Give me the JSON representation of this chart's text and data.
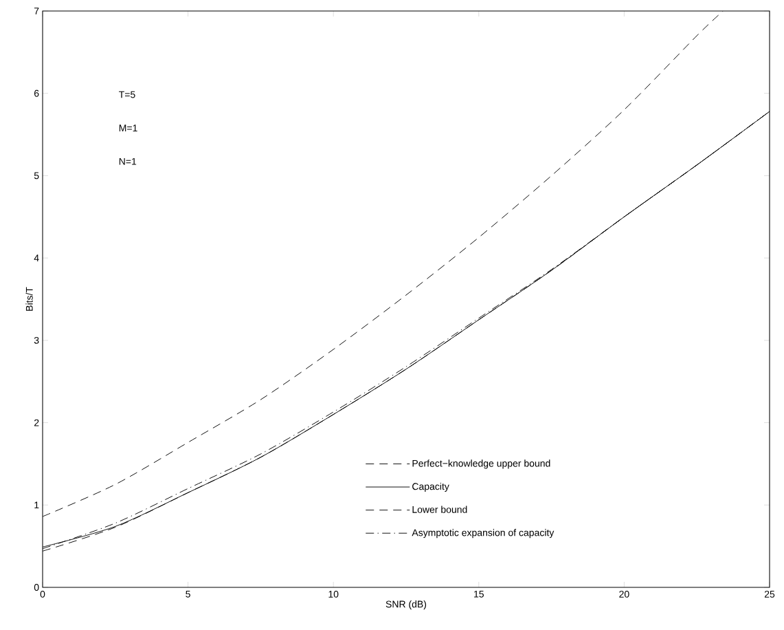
{
  "chart_data": {
    "type": "line",
    "xlabel": "SNR (dB)",
    "ylabel": "Bits/T",
    "x": [
      0,
      2.5,
      5,
      7.5,
      10,
      12.5,
      15,
      17.5,
      20,
      22.5,
      25
    ],
    "series": [
      {
        "name": "Perfect−knowledge upper bound",
        "color": "#000000",
        "line_style": "dashed",
        "x": [
          0,
          2.5,
          5,
          7.5,
          10,
          12.5,
          15,
          17.5,
          20,
          22.5,
          23.4
        ],
        "values": [
          0.86,
          1.25,
          1.76,
          2.28,
          2.89,
          3.55,
          4.25,
          5.0,
          5.8,
          6.7,
          7.0
        ]
      },
      {
        "name": "Capacity",
        "color": "#000000",
        "line_style": "solid",
        "values": [
          0.49,
          0.74,
          1.15,
          1.58,
          2.1,
          2.65,
          3.25,
          3.85,
          4.5,
          5.13,
          5.78
        ]
      },
      {
        "name": "Lower bound",
        "color": "#000000",
        "line_style": "dashed",
        "values": [
          0.44,
          0.73,
          1.15,
          1.58,
          2.1,
          2.65,
          3.25,
          3.85,
          4.5,
          5.13,
          5.78
        ]
      },
      {
        "name": "Asymptotic expansion of capacity",
        "color": "#000000",
        "line_style": "dashdot",
        "values": [
          0.47,
          0.78,
          1.2,
          1.62,
          2.13,
          2.68,
          3.27,
          3.86,
          4.5,
          5.13,
          5.78
        ]
      }
    ],
    "xlim": [
      0,
      25
    ],
    "ylim": [
      0,
      7
    ],
    "xticks": [
      0,
      5,
      10,
      15,
      20,
      25
    ],
    "yticks": [
      0,
      1,
      2,
      3,
      4,
      5,
      6,
      7
    ],
    "legend": "bottom right",
    "grid": false,
    "annotations": [
      "T=5",
      "M=1",
      "N=1"
    ]
  }
}
